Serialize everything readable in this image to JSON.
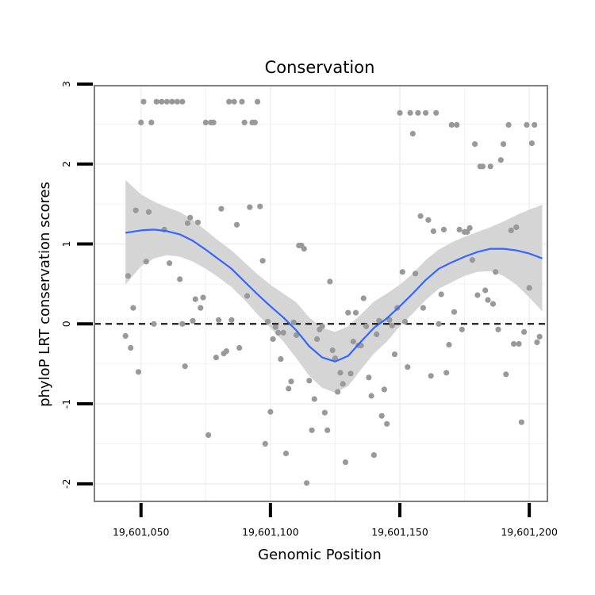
{
  "chart_data": {
    "type": "scatter",
    "title": "Conservation",
    "xlabel": "Genomic Position",
    "ylabel": "phyloP LRT conservation scores",
    "xlim": [
      19601032,
      19601207
    ],
    "ylim": [
      -2.22,
      2.98
    ],
    "grid": true,
    "xticks": [
      19601050,
      19601100,
      19601150,
      19601200
    ],
    "xtick_labels": [
      "19,601,050",
      "19,601,100",
      "19,601,150",
      "19,601,200"
    ],
    "yticks": [
      -2,
      -1,
      0,
      1,
      2,
      3
    ],
    "ytick_labels": [
      "-2",
      "-1",
      "0",
      "1",
      "2",
      "3"
    ],
    "reference_line": {
      "y": 0,
      "style": "dashed"
    },
    "colors": {
      "points": "#999999",
      "smooth_line": "#3366ff",
      "ribbon": "#d3d3d3",
      "panel_border": "#7f7f7f",
      "grid": "#f2f2f2"
    },
    "points": [
      {
        "x": 19601044,
        "y": -0.15
      },
      {
        "x": 19601045,
        "y": 0.6
      },
      {
        "x": 19601046,
        "y": -0.3
      },
      {
        "x": 19601047,
        "y": 0.2
      },
      {
        "x": 19601048,
        "y": 1.42
      },
      {
        "x": 19601049,
        "y": -0.6
      },
      {
        "x": 19601050,
        "y": 2.52
      },
      {
        "x": 19601051,
        "y": 2.78
      },
      {
        "x": 19601052,
        "y": 0.78
      },
      {
        "x": 19601053,
        "y": 1.4
      },
      {
        "x": 19601054,
        "y": 2.52
      },
      {
        "x": 19601055,
        "y": 0.0
      },
      {
        "x": 19601056,
        "y": 2.78
      },
      {
        "x": 19601058,
        "y": 2.78
      },
      {
        "x": 19601059,
        "y": 1.18
      },
      {
        "x": 19601060,
        "y": 2.78
      },
      {
        "x": 19601061,
        "y": 0.76
      },
      {
        "x": 19601062,
        "y": 2.78
      },
      {
        "x": 19601064,
        "y": 2.78
      },
      {
        "x": 19601065,
        "y": 0.56
      },
      {
        "x": 19601066,
        "y": 2.78
      },
      {
        "x": 19601066,
        "y": 0.0
      },
      {
        "x": 19601067,
        "y": -0.53
      },
      {
        "x": 19601068,
        "y": 1.26
      },
      {
        "x": 19601069,
        "y": 1.33
      },
      {
        "x": 19601070,
        "y": 0.04
      },
      {
        "x": 19601071,
        "y": 0.31
      },
      {
        "x": 19601072,
        "y": 1.27
      },
      {
        "x": 19601073,
        "y": 0.2
      },
      {
        "x": 19601074,
        "y": 0.33
      },
      {
        "x": 19601075,
        "y": 2.52
      },
      {
        "x": 19601076,
        "y": -1.39
      },
      {
        "x": 19601077,
        "y": 2.52
      },
      {
        "x": 19601078,
        "y": 2.52
      },
      {
        "x": 19601079,
        "y": -0.42
      },
      {
        "x": 19601080,
        "y": 0.05
      },
      {
        "x": 19601081,
        "y": 1.44
      },
      {
        "x": 19601082,
        "y": -0.37
      },
      {
        "x": 19601083,
        "y": -0.34
      },
      {
        "x": 19601084,
        "y": 2.78
      },
      {
        "x": 19601085,
        "y": 0.05
      },
      {
        "x": 19601086,
        "y": 2.78
      },
      {
        "x": 19601087,
        "y": 1.24
      },
      {
        "x": 19601088,
        "y": -0.3
      },
      {
        "x": 19601089,
        "y": 2.78
      },
      {
        "x": 19601090,
        "y": 2.52
      },
      {
        "x": 19601091,
        "y": 0.35
      },
      {
        "x": 19601092,
        "y": 1.46
      },
      {
        "x": 19601093,
        "y": 2.52
      },
      {
        "x": 19601094,
        "y": 2.52
      },
      {
        "x": 19601095,
        "y": 2.78
      },
      {
        "x": 19601096,
        "y": 1.47
      },
      {
        "x": 19601097,
        "y": 0.79
      },
      {
        "x": 19601098,
        "y": -1.5
      },
      {
        "x": 19601099,
        "y": 0.03
      },
      {
        "x": 19601100,
        "y": -1.1
      },
      {
        "x": 19601101,
        "y": -0.19
      },
      {
        "x": 19601102,
        "y": -0.04
      },
      {
        "x": 19601103,
        "y": -0.11
      },
      {
        "x": 19601104,
        "y": -0.44
      },
      {
        "x": 19601105,
        "y": -0.11
      },
      {
        "x": 19601106,
        "y": -1.62
      },
      {
        "x": 19601107,
        "y": -0.81
      },
      {
        "x": 19601108,
        "y": -0.72
      },
      {
        "x": 19601109,
        "y": 0.02
      },
      {
        "x": 19601110,
        "y": -0.14
      },
      {
        "x": 19601111,
        "y": 0.98
      },
      {
        "x": 19601112,
        "y": 0.98
      },
      {
        "x": 19601113,
        "y": 0.94
      },
      {
        "x": 19601114,
        "y": -1.99
      },
      {
        "x": 19601115,
        "y": -0.71
      },
      {
        "x": 19601116,
        "y": -1.33
      },
      {
        "x": 19601117,
        "y": -0.94
      },
      {
        "x": 19601118,
        "y": -0.19
      },
      {
        "x": 19601119,
        "y": -0.07
      },
      {
        "x": 19601120,
        "y": -0.03
      },
      {
        "x": 19601121,
        "y": -1.11
      },
      {
        "x": 19601122,
        "y": -1.33
      },
      {
        "x": 19601123,
        "y": 0.53
      },
      {
        "x": 19601124,
        "y": -0.33
      },
      {
        "x": 19601125,
        "y": -0.43
      },
      {
        "x": 19601126,
        "y": -0.85
      },
      {
        "x": 19601127,
        "y": -0.61
      },
      {
        "x": 19601128,
        "y": -0.75
      },
      {
        "x": 19601129,
        "y": -1.73
      },
      {
        "x": 19601130,
        "y": 0.14
      },
      {
        "x": 19601131,
        "y": -0.62
      },
      {
        "x": 19601132,
        "y": -0.22
      },
      {
        "x": 19601133,
        "y": 0.14
      },
      {
        "x": 19601134,
        "y": -0.27
      },
      {
        "x": 19601135,
        "y": -0.27
      },
      {
        "x": 19601136,
        "y": 0.32
      },
      {
        "x": 19601137,
        "y": -0.03
      },
      {
        "x": 19601138,
        "y": -0.67
      },
      {
        "x": 19601139,
        "y": -0.9
      },
      {
        "x": 19601140,
        "y": -1.64
      },
      {
        "x": 19601141,
        "y": -0.13
      },
      {
        "x": 19601142,
        "y": 0.04
      },
      {
        "x": 19601143,
        "y": -1.15
      },
      {
        "x": 19601144,
        "y": -0.82
      },
      {
        "x": 19601145,
        "y": -1.25
      },
      {
        "x": 19601146,
        "y": 0.05
      },
      {
        "x": 19601147,
        "y": -0.02
      },
      {
        "x": 19601148,
        "y": -0.38
      },
      {
        "x": 19601149,
        "y": 0.2
      },
      {
        "x": 19601150,
        "y": 2.64
      },
      {
        "x": 19601151,
        "y": 0.65
      },
      {
        "x": 19601152,
        "y": 0.03
      },
      {
        "x": 19601153,
        "y": -0.54
      },
      {
        "x": 19601154,
        "y": 2.64
      },
      {
        "x": 19601155,
        "y": 2.38
      },
      {
        "x": 19601156,
        "y": 0.63
      },
      {
        "x": 19601157,
        "y": 2.64
      },
      {
        "x": 19601158,
        "y": 1.35
      },
      {
        "x": 19601159,
        "y": 0.2
      },
      {
        "x": 19601160,
        "y": 2.64
      },
      {
        "x": 19601161,
        "y": 1.3
      },
      {
        "x": 19601162,
        "y": -0.65
      },
      {
        "x": 19601163,
        "y": 1.16
      },
      {
        "x": 19601164,
        "y": 2.64
      },
      {
        "x": 19601165,
        "y": 0.0
      },
      {
        "x": 19601166,
        "y": 0.37
      },
      {
        "x": 19601167,
        "y": 1.18
      },
      {
        "x": 19601168,
        "y": -0.61
      },
      {
        "x": 19601169,
        "y": -0.26
      },
      {
        "x": 19601170,
        "y": 2.49
      },
      {
        "x": 19601171,
        "y": 0.15
      },
      {
        "x": 19601172,
        "y": 2.49
      },
      {
        "x": 19601173,
        "y": 1.18
      },
      {
        "x": 19601174,
        "y": -0.07
      },
      {
        "x": 19601175,
        "y": 1.15
      },
      {
        "x": 19601176,
        "y": 1.15
      },
      {
        "x": 19601177,
        "y": 1.2
      },
      {
        "x": 19601178,
        "y": 0.8
      },
      {
        "x": 19601179,
        "y": 2.25
      },
      {
        "x": 19601180,
        "y": 0.36
      },
      {
        "x": 19601181,
        "y": 1.97
      },
      {
        "x": 19601182,
        "y": 1.97
      },
      {
        "x": 19601183,
        "y": 0.42
      },
      {
        "x": 19601184,
        "y": 0.3
      },
      {
        "x": 19601185,
        "y": 1.97
      },
      {
        "x": 19601186,
        "y": 0.25
      },
      {
        "x": 19601187,
        "y": 0.65
      },
      {
        "x": 19601188,
        "y": -0.07
      },
      {
        "x": 19601189,
        "y": 2.05
      },
      {
        "x": 19601190,
        "y": 2.25
      },
      {
        "x": 19601191,
        "y": -0.63
      },
      {
        "x": 19601192,
        "y": 2.49
      },
      {
        "x": 19601193,
        "y": 1.17
      },
      {
        "x": 19601194,
        "y": -0.25
      },
      {
        "x": 19601195,
        "y": 1.21
      },
      {
        "x": 19601196,
        "y": -0.25
      },
      {
        "x": 19601197,
        "y": -1.23
      },
      {
        "x": 19601198,
        "y": -0.1
      },
      {
        "x": 19601199,
        "y": 2.49
      },
      {
        "x": 19601200,
        "y": 0.45
      },
      {
        "x": 19601201,
        "y": 2.26
      },
      {
        "x": 19601202,
        "y": 2.49
      },
      {
        "x": 19601203,
        "y": -0.23
      },
      {
        "x": 19601204,
        "y": -0.16
      }
    ],
    "smooth": [
      {
        "x": 19601044,
        "y": 1.14
      },
      {
        "x": 19601050,
        "y": 1.17
      },
      {
        "x": 19601055,
        "y": 1.18
      },
      {
        "x": 19601060,
        "y": 1.16
      },
      {
        "x": 19601065,
        "y": 1.12
      },
      {
        "x": 19601070,
        "y": 1.04
      },
      {
        "x": 19601075,
        "y": 0.93
      },
      {
        "x": 19601080,
        "y": 0.81
      },
      {
        "x": 19601085,
        "y": 0.69
      },
      {
        "x": 19601090,
        "y": 0.53
      },
      {
        "x": 19601095,
        "y": 0.37
      },
      {
        "x": 19601100,
        "y": 0.22
      },
      {
        "x": 19601105,
        "y": 0.08
      },
      {
        "x": 19601110,
        "y": -0.08
      },
      {
        "x": 19601115,
        "y": -0.28
      },
      {
        "x": 19601120,
        "y": -0.42
      },
      {
        "x": 19601125,
        "y": -0.47
      },
      {
        "x": 19601130,
        "y": -0.4
      },
      {
        "x": 19601135,
        "y": -0.22
      },
      {
        "x": 19601140,
        "y": -0.05
      },
      {
        "x": 19601145,
        "y": 0.07
      },
      {
        "x": 19601150,
        "y": 0.22
      },
      {
        "x": 19601155,
        "y": 0.38
      },
      {
        "x": 19601160,
        "y": 0.55
      },
      {
        "x": 19601165,
        "y": 0.69
      },
      {
        "x": 19601170,
        "y": 0.77
      },
      {
        "x": 19601175,
        "y": 0.84
      },
      {
        "x": 19601180,
        "y": 0.9
      },
      {
        "x": 19601185,
        "y": 0.94
      },
      {
        "x": 19601190,
        "y": 0.94
      },
      {
        "x": 19601195,
        "y": 0.92
      },
      {
        "x": 19601200,
        "y": 0.88
      },
      {
        "x": 19601205,
        "y": 0.82
      }
    ],
    "ribbon": [
      {
        "x": 19601044,
        "lo": 0.49,
        "hi": 1.8
      },
      {
        "x": 19601050,
        "lo": 0.72,
        "hi": 1.62
      },
      {
        "x": 19601055,
        "lo": 0.82,
        "hi": 1.53
      },
      {
        "x": 19601060,
        "lo": 0.86,
        "hi": 1.46
      },
      {
        "x": 19601065,
        "lo": 0.84,
        "hi": 1.4
      },
      {
        "x": 19601070,
        "lo": 0.78,
        "hi": 1.3
      },
      {
        "x": 19601075,
        "lo": 0.69,
        "hi": 1.17
      },
      {
        "x": 19601080,
        "lo": 0.58,
        "hi": 1.04
      },
      {
        "x": 19601085,
        "lo": 0.46,
        "hi": 0.92
      },
      {
        "x": 19601090,
        "lo": 0.3,
        "hi": 0.77
      },
      {
        "x": 19601095,
        "lo": 0.12,
        "hi": 0.62
      },
      {
        "x": 19601100,
        "lo": -0.05,
        "hi": 0.49
      },
      {
        "x": 19601105,
        "lo": -0.22,
        "hi": 0.38
      },
      {
        "x": 19601110,
        "lo": -0.43,
        "hi": 0.27
      },
      {
        "x": 19601115,
        "lo": -0.65,
        "hi": 0.08
      },
      {
        "x": 19601120,
        "lo": -0.8,
        "hi": -0.05
      },
      {
        "x": 19601125,
        "lo": -0.86,
        "hi": -0.1
      },
      {
        "x": 19601130,
        "lo": -0.78,
        "hi": -0.03
      },
      {
        "x": 19601135,
        "lo": -0.57,
        "hi": 0.12
      },
      {
        "x": 19601140,
        "lo": -0.37,
        "hi": 0.28
      },
      {
        "x": 19601145,
        "lo": -0.22,
        "hi": 0.38
      },
      {
        "x": 19601150,
        "lo": -0.03,
        "hi": 0.49
      },
      {
        "x": 19601155,
        "lo": 0.13,
        "hi": 0.63
      },
      {
        "x": 19601160,
        "lo": 0.3,
        "hi": 0.8
      },
      {
        "x": 19601165,
        "lo": 0.44,
        "hi": 0.93
      },
      {
        "x": 19601170,
        "lo": 0.52,
        "hi": 1.02
      },
      {
        "x": 19601175,
        "lo": 0.6,
        "hi": 1.09
      },
      {
        "x": 19601180,
        "lo": 0.65,
        "hi": 1.15
      },
      {
        "x": 19601185,
        "lo": 0.66,
        "hi": 1.21
      },
      {
        "x": 19601190,
        "lo": 0.6,
        "hi": 1.28
      },
      {
        "x": 19601195,
        "lo": 0.49,
        "hi": 1.36
      },
      {
        "x": 19601200,
        "lo": 0.33,
        "hi": 1.43
      },
      {
        "x": 19601205,
        "lo": 0.16,
        "hi": 1.49
      }
    ]
  }
}
